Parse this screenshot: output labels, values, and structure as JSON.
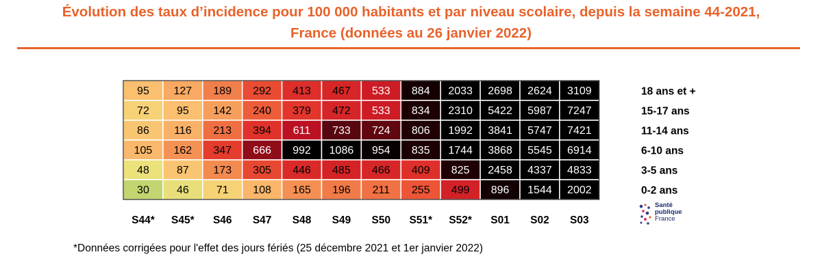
{
  "title": {
    "line1": "Évolution des taux d’incidence pour 100 000 habitants et par niveau scolaire, depuis la semaine 44-2021,",
    "line2": "France (données au 26 janvier 2022)"
  },
  "colors": {
    "accent": "#e8622a"
  },
  "chart_data": {
    "type": "heatmap",
    "columns": [
      "S44*",
      "S45*",
      "S46",
      "S47",
      "S48",
      "S49",
      "S50",
      "S51*",
      "S52*",
      "S01",
      "S02",
      "S03"
    ],
    "rows": [
      {
        "label": "18 ans et +",
        "values": [
          95,
          127,
          189,
          292,
          413,
          467,
          533,
          884,
          2033,
          2698,
          2624,
          3109
        ]
      },
      {
        "label": "15-17 ans",
        "values": [
          72,
          95,
          142,
          240,
          379,
          472,
          533,
          834,
          2310,
          5422,
          5987,
          7247
        ]
      },
      {
        "label": "11-14 ans",
        "values": [
          86,
          116,
          213,
          394,
          611,
          733,
          724,
          806,
          1992,
          3841,
          5747,
          7421
        ]
      },
      {
        "label": "6-10 ans",
        "values": [
          105,
          162,
          347,
          666,
          992,
          1086,
          954,
          835,
          1744,
          3868,
          5545,
          6914
        ]
      },
      {
        "label": "3-5 ans",
        "values": [
          48,
          87,
          173,
          305,
          446,
          485,
          466,
          409,
          825,
          2458,
          4337,
          4833
        ]
      },
      {
        "label": "0-2 ans",
        "values": [
          30,
          46,
          71,
          108,
          165,
          196,
          211,
          255,
          499,
          896,
          1544,
          2002
        ]
      }
    ],
    "color_scale": {
      "stops": [
        {
          "value": 0,
          "color": "#77c15e"
        },
        {
          "value": 50,
          "color": "#f2e27c"
        },
        {
          "value": 100,
          "color": "#fbbb6e"
        },
        {
          "value": 150,
          "color": "#f59a58"
        },
        {
          "value": 250,
          "color": "#ec5636"
        },
        {
          "value": 400,
          "color": "#e0302a"
        },
        {
          "value": 600,
          "color": "#c41224"
        },
        {
          "value": 800,
          "color": "#220004"
        },
        {
          "value": 1000,
          "color": "#000000"
        }
      ],
      "light_text_threshold": 500
    }
  },
  "logo": {
    "line1": "Santé",
    "line2": "publique",
    "line3": "France"
  },
  "footnote": "*Données corrigées pour l'effet des jours fériés (25 décembre 2021 et 1er janvier 2022)"
}
